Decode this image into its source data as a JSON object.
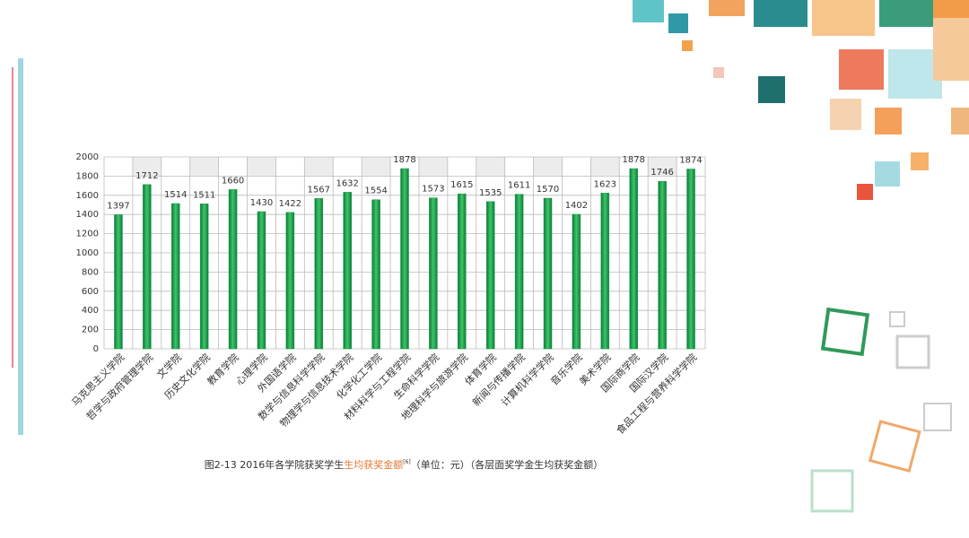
{
  "chart_data": {
    "type": "bar",
    "categories": [
      "马克思主义学院",
      "哲学与政府管理学院",
      "文学院",
      "历史文化学院",
      "教育学院",
      "心理学院",
      "外国语学院",
      "数学与信息科学学院",
      "物理学与信息技术学院",
      "化学化工学院",
      "材料科学与工程学院",
      "生命科学学院",
      "地理科学与旅游学院",
      "体育学院",
      "新闻与传播学院",
      "计算机科学学院",
      "音乐学院",
      "美术学院",
      "国际商学院",
      "国际汉学院",
      "食品工程与营养科学学院"
    ],
    "values": [
      1397,
      1712,
      1514,
      1511,
      1660,
      1430,
      1422,
      1567,
      1632,
      1554,
      1878,
      1573,
      1615,
      1535,
      1611,
      1570,
      1402,
      1623,
      1878,
      1746,
      1874
    ],
    "color": "#1a9a4a",
    "ylim": [
      0,
      2000
    ],
    "yticks": [
      0,
      200,
      400,
      600,
      800,
      1000,
      1200,
      1400,
      1600,
      1800,
      2000
    ],
    "grid": true,
    "caption_parts": {
      "prefix": "图2-13  2016年各学院获奖学生",
      "highlight": "生均获奖金额",
      "note": "[6]",
      "suffix": "（单位：元）（各层面奖学金生均获奖金额）"
    }
  }
}
